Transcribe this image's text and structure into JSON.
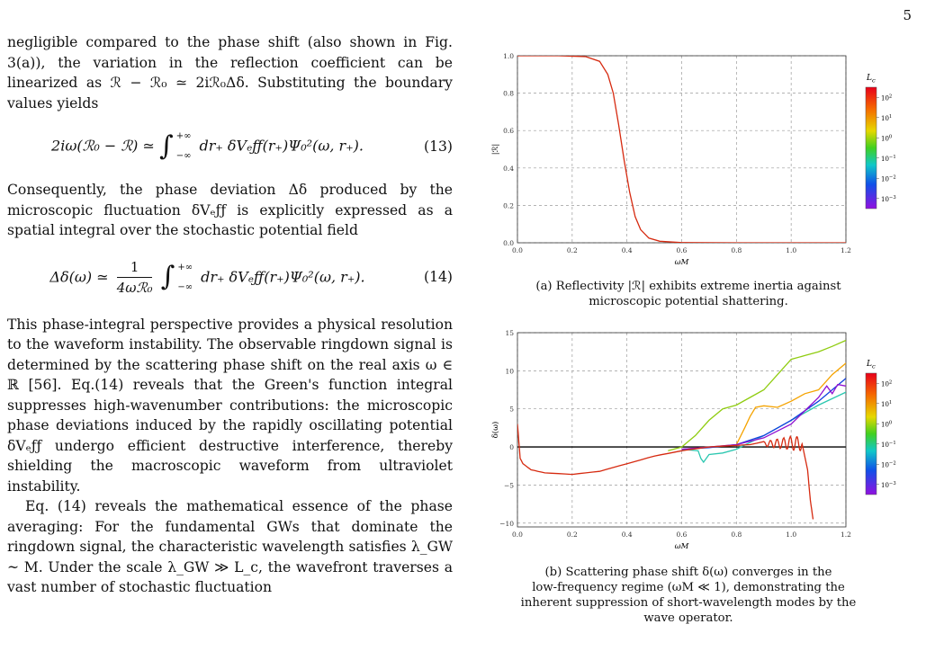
{
  "page_number": "5",
  "left_text": {
    "p1": "negligible compared to the phase shift (also shown in Fig. 3(a)), the variation in the reflection coefficient can be linearized as ℛ − ℛ₀ ≃ 2iℛ₀Δδ. Substituting the boundary values yields",
    "eq13_lhs": "2iω(ℛ₀ − ℛ) ≃",
    "eq13_rhs": "dr₊ δVₑƒƒ(r₊)Ψ₀²(ω, r₊).",
    "eq13_num": "(13)",
    "p2": "Consequently, the phase deviation Δδ produced by the microscopic fluctuation δVₑƒƒ is explicitly expressed as a spatial integral over the stochastic potential field",
    "eq14_lhs": "Δδ(ω) ≃",
    "eq14_frac_num": "1",
    "eq14_frac_den": "4ωℛ₀",
    "eq14_rhs": "dr₊ δVₑƒƒ(r₊)Ψ₀²(ω, r₊).",
    "eq14_num": "(14)",
    "int_upper": "+∞",
    "int_lower": "−∞",
    "p3": "This phase-integral perspective provides a physical resolution to the waveform instability. The observable ringdown signal is determined by the scattering phase shift on the real axis ω ∈ ℝ [56]. Eq.(14) reveals that the Green's function integral suppresses high-wavenumber contributions: the microscopic phase deviations induced by the rapidly oscillating potential δVₑƒƒ undergo efficient destructive interference, thereby shielding the macroscopic waveform from ultraviolet instability.",
    "p4": "Eq. (14) reveals the mathematical essence of the phase averaging: For the fundamental GWs that dominate the ringdown signal, the characteristic wavelength satisfies λ_GW ~ M. Under the scale λ_GW ≫ L_c, the wavefront traverses a vast number of stochastic fluctuation"
  },
  "figure_a": {
    "caption_line1": "(a) Reflectivity |ℛ| exhibits extreme inertia against",
    "caption_line2": "microscopic potential shattering.",
    "colorbar_title": "L_c",
    "colorbar_ticks": [
      "10^2",
      "10^1",
      "10^0",
      "10^-1",
      "10^-2",
      "10^-3"
    ]
  },
  "figure_b": {
    "caption_line1": "(b) Scattering phase shift δ(ω) converges in the",
    "caption_line2": "low-frequency regime (ωM ≪ 1), demonstrating the",
    "caption_line3": "inherent suppression of short-wavelength modes by the",
    "caption_line4": "wave operator.",
    "colorbar_title": "L_c",
    "colorbar_ticks": [
      "10^2",
      "10^1",
      "10^0",
      "10^-1",
      "10^-2",
      "10^-3"
    ]
  },
  "chart_data": [
    {
      "type": "line",
      "xlabel": "ωM",
      "ylabel": "|ℛ|",
      "xlim": [
        0,
        1.2
      ],
      "ylim": [
        0,
        1.0
      ],
      "xticks": [
        "0.0",
        "0.2",
        "0.4",
        "0.6",
        "0.8",
        "1.0",
        "1.2"
      ],
      "yticks": [
        "0.0",
        "0.2",
        "0.4",
        "0.6",
        "0.8",
        "1.0"
      ],
      "grid": true,
      "series": [
        {
          "color": "#d62a10",
          "x": [
            0,
            0.15,
            0.25,
            0.3,
            0.33,
            0.35,
            0.37,
            0.39,
            0.41,
            0.43,
            0.45,
            0.48,
            0.52,
            0.6,
            0.8,
            1.0,
            1.2
          ],
          "y": [
            1.0,
            1.0,
            0.995,
            0.97,
            0.9,
            0.8,
            0.63,
            0.44,
            0.27,
            0.14,
            0.07,
            0.025,
            0.008,
            0.001,
            0,
            0,
            0
          ]
        }
      ]
    },
    {
      "type": "line",
      "xlabel": "ωM",
      "ylabel": "δ(ω)",
      "xlim": [
        0,
        1.2
      ],
      "ylim": [
        -10.5,
        15
      ],
      "xticks": [
        "0.0",
        "0.2",
        "0.4",
        "0.6",
        "0.8",
        "1.0",
        "1.2"
      ],
      "yticks": [
        "−10",
        "−5",
        "0",
        "5",
        "10",
        "15"
      ],
      "grid": true,
      "series": [
        {
          "color": "#d62a10",
          "x": [
            0,
            0.01,
            0.02,
            0.05,
            0.1,
            0.2,
            0.3,
            0.4,
            0.5,
            0.6,
            0.7,
            0.8,
            0.9,
            1.0,
            1.04,
            1.06,
            1.07,
            1.08
          ],
          "y": [
            3,
            -1.5,
            -2.2,
            -3.0,
            -3.4,
            -3.6,
            -3.2,
            -2.2,
            -1.2,
            -0.5,
            0,
            0.2,
            0.4,
            0.5,
            0.4,
            -3,
            -7,
            -9.5
          ]
        },
        {
          "color": "#8fcc10",
          "x": [
            0.55,
            0.6,
            0.65,
            0.7,
            0.75,
            0.8,
            0.85,
            0.9,
            0.95,
            1.0,
            1.05,
            1.1,
            1.15,
            1.2
          ],
          "y": [
            -0.5,
            0,
            1.5,
            3.5,
            5.0,
            5.5,
            6.5,
            7.5,
            9.5,
            11.5,
            12.0,
            12.5,
            13.2,
            14.0
          ]
        },
        {
          "color": "#f5a300",
          "x": [
            0.6,
            0.7,
            0.8,
            0.83,
            0.85,
            0.87,
            0.9,
            0.95,
            1.0,
            1.05,
            1.1,
            1.15,
            1.2
          ],
          "y": [
            -0.3,
            0,
            0.3,
            2.5,
            4.0,
            5.2,
            5.4,
            5.2,
            6.0,
            7.0,
            7.5,
            9.5,
            11.0
          ]
        },
        {
          "color": "#2bc7b0",
          "x": [
            0.6,
            0.66,
            0.67,
            0.68,
            0.7,
            0.75,
            0.8,
            0.9,
            1.0,
            1.1,
            1.2
          ],
          "y": [
            -0.3,
            -0.5,
            -1.5,
            -2.0,
            -1.0,
            -0.8,
            -0.3,
            1.5,
            3.5,
            5.5,
            7.2
          ]
        },
        {
          "color": "#1040e0",
          "x": [
            0.6,
            0.7,
            0.8,
            0.9,
            1.0,
            1.1,
            1.15,
            1.2
          ],
          "y": [
            -0.3,
            -0.1,
            0.3,
            1.5,
            3.5,
            6.0,
            7.5,
            9.0
          ]
        },
        {
          "color": "#9010d0",
          "x": [
            0.6,
            0.7,
            0.8,
            0.9,
            1.0,
            1.1,
            1.13,
            1.15,
            1.17,
            1.2
          ],
          "y": [
            -0.3,
            0,
            0.3,
            1.2,
            3.0,
            6.5,
            8.0,
            7.0,
            8.2,
            8.0
          ]
        }
      ]
    }
  ]
}
